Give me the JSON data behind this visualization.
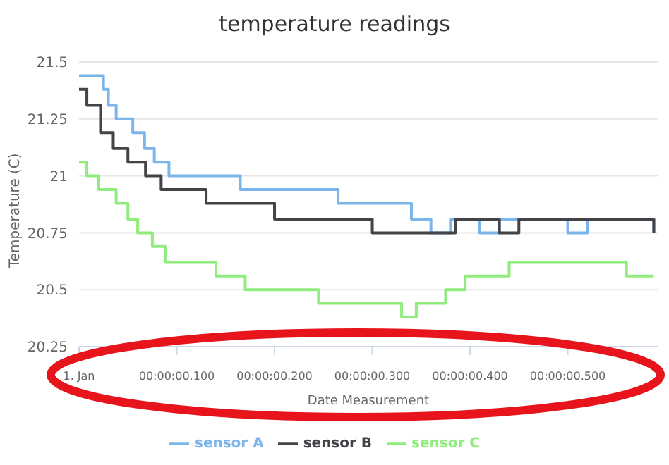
{
  "chart_data": {
    "type": "step",
    "title": "temperature readings",
    "xlabel": "Date Measurement",
    "ylabel": "Temperature (C)",
    "xlim": [
      "--01-01T00:00:00.000",
      "--01-01T00:00:00.592"
    ],
    "xticks": [
      {
        "value": "--01-01T00:00:00.000",
        "label": "1. Jan"
      },
      {
        "value": "--01-01T00:00:00.100",
        "label": "00:00:00.100"
      },
      {
        "value": "--01-01T00:00:00.200",
        "label": "00:00:00.200"
      },
      {
        "value": "--01-01T00:00:00.300",
        "label": "00:00:00.300"
      },
      {
        "value": "--01-01T00:00:00.400",
        "label": "00:00:00.400"
      },
      {
        "value": "--01-01T00:00:00.500",
        "label": "00:00:00.500"
      }
    ],
    "ylim": [
      20.25,
      21.5
    ],
    "yticks": [
      20.25,
      20.5,
      20.75,
      21,
      21.25,
      21.5
    ],
    "grid": "y",
    "legend": "bottom",
    "series": [
      {
        "name": "sensor A",
        "color": "#7cb5ec",
        "x": [
          "--01-01T00:00:00.000",
          "--01-01T00:00:00.020",
          "--01-01T00:00:00.025",
          "--01-01T00:00:00.030",
          "--01-01T00:00:00.038",
          "--01-01T00:00:00.055",
          "--01-01T00:00:00.067",
          "--01-01T00:00:00.077",
          "--01-01T00:00:00.092",
          "--01-01T00:00:00.165",
          "--01-01T00:00:00.265",
          "--01-01T00:00:00.340",
          "--01-01T00:00:00.360",
          "--01-01T00:00:00.380",
          "--01-01T00:00:00.410",
          "--01-01T00:00:00.430",
          "--01-01T00:00:00.500",
          "--01-01T00:00:00.520",
          "--01-01T00:00:00.588"
        ],
        "values": [
          21.44,
          21.44,
          21.38,
          21.31,
          21.25,
          21.19,
          21.12,
          21.06,
          21,
          20.94,
          20.88,
          20.81,
          20.75,
          20.81,
          20.75,
          20.81,
          20.75,
          20.81,
          20.75
        ]
      },
      {
        "name": "sensor B",
        "color": "#434348",
        "x": [
          "--01-01T00:00:00.000",
          "--01-01T00:00:00.008",
          "--01-01T00:00:00.022",
          "--01-01T00:00:00.035",
          "--01-01T00:00:00.050",
          "--01-01T00:00:00.068",
          "--01-01T00:00:00.084",
          "--01-01T00:00:00.130",
          "--01-01T00:00:00.200",
          "--01-01T00:00:00.300",
          "--01-01T00:00:00.385",
          "--01-01T00:00:00.430",
          "--01-01T00:00:00.450",
          "--01-01T00:00:00.588"
        ],
        "values": [
          21.38,
          21.31,
          21.19,
          21.12,
          21.06,
          21,
          20.94,
          20.88,
          20.81,
          20.75,
          20.81,
          20.75,
          20.81,
          20.75
        ]
      },
      {
        "name": "sensor C",
        "color": "#90ed7d",
        "x": [
          "--01-01T00:00:00.000",
          "--01-01T00:00:00.008",
          "--01-01T00:00:00.020",
          "--01-01T00:00:00.038",
          "--01-01T00:00:00.050",
          "--01-01T00:00:00.060",
          "--01-01T00:00:00.075",
          "--01-01T00:00:00.088",
          "--01-01T00:00:00.140",
          "--01-01T00:00:00.170",
          "--01-01T00:00:00.245",
          "--01-01T00:00:00.330",
          "--01-01T00:00:00.345",
          "--01-01T00:00:00.375",
          "--01-01T00:00:00.395",
          "--01-01T00:00:00.440",
          "--01-01T00:00:00.560",
          "--01-01T00:00:00.588"
        ],
        "values": [
          21.06,
          21,
          20.94,
          20.88,
          20.81,
          20.75,
          20.69,
          20.62,
          20.56,
          20.5,
          20.44,
          20.38,
          20.44,
          20.5,
          20.56,
          20.62,
          20.56,
          20.56
        ]
      }
    ]
  }
}
